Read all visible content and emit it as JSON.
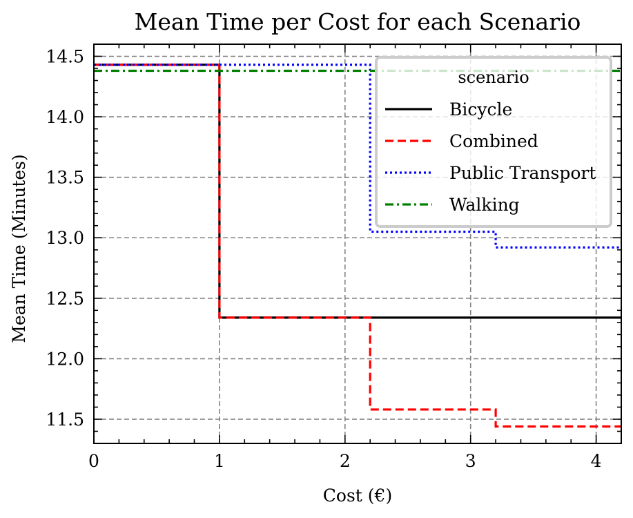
{
  "chart_data": {
    "type": "line",
    "step": "post",
    "title": "Mean Time per Cost for each Scenario",
    "xlabel": "Cost (€)",
    "ylabel": "Mean Time (Minutes)",
    "xlim": [
      0,
      4.2
    ],
    "ylim": [
      11.3,
      14.6
    ],
    "xticks": [
      0,
      1,
      2,
      3,
      4
    ],
    "xtick_labels": [
      "0",
      "1",
      "2",
      "3",
      "4"
    ],
    "yticks": [
      11.5,
      12.0,
      12.5,
      13.0,
      13.5,
      14.0,
      14.5
    ],
    "ytick_labels": [
      "11.5",
      "12.0",
      "12.5",
      "13.0",
      "13.5",
      "14.0",
      "14.5"
    ],
    "grid": true,
    "legend": {
      "title": "scenario",
      "placement": "top-right"
    },
    "series": [
      {
        "name": "Bicycle",
        "color": "#000000",
        "style": "solid",
        "x": [
          0,
          1.0,
          4.2
        ],
        "y": [
          14.43,
          12.34,
          12.34
        ]
      },
      {
        "name": "Combined",
        "color": "#ff0000",
        "style": "dashed",
        "x": [
          0,
          1.0,
          2.2,
          3.2,
          4.2
        ],
        "y": [
          14.43,
          12.34,
          11.58,
          11.44,
          11.44
        ]
      },
      {
        "name": "Public Transport",
        "color": "#0000ff",
        "style": "dotted",
        "x": [
          0,
          2.2,
          3.2,
          4.2
        ],
        "y": [
          14.43,
          13.05,
          12.92,
          12.92
        ]
      },
      {
        "name": "Walking",
        "color": "#008000",
        "style": "dashdot",
        "x": [
          0,
          4.2
        ],
        "y": [
          14.38,
          14.38
        ]
      }
    ]
  }
}
